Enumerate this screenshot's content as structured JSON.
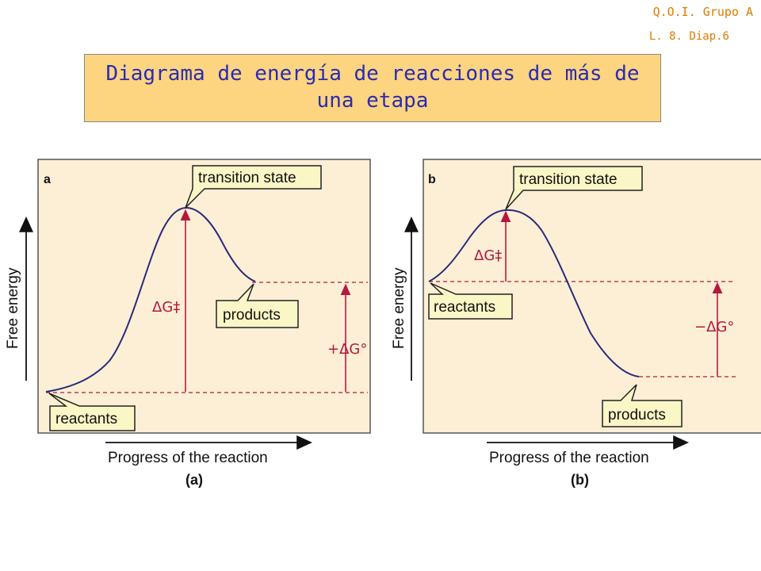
{
  "header": {
    "corner_line1": "Q.O.I. Grupo A",
    "corner_line2": "L. 8. Diap.6",
    "title": "Diagrama de energía de reacciones de más de una etapa"
  },
  "panel_a": {
    "letter": "a",
    "transition_label": "transition state",
    "products_label": "products",
    "reactants_label": "reactants",
    "activation_label": "ΔG‡",
    "dg_label": "+ΔG°",
    "y_axis": "Free energy",
    "x_axis": "Progress of the reaction",
    "caption": "(a)"
  },
  "panel_b": {
    "letter": "b",
    "transition_label": "transition state",
    "products_label": "products",
    "reactants_label": "reactants",
    "activation_label": "ΔG‡",
    "dg_label": "−ΔG°",
    "y_axis": "Free energy",
    "x_axis": "Progress of the reaction",
    "caption": "(b)"
  },
  "colors": {
    "panel_bg": "#fcefd6",
    "curve": "#2a2a7a",
    "accent": "#b5183f",
    "label_bg": "#fbf6c6"
  }
}
